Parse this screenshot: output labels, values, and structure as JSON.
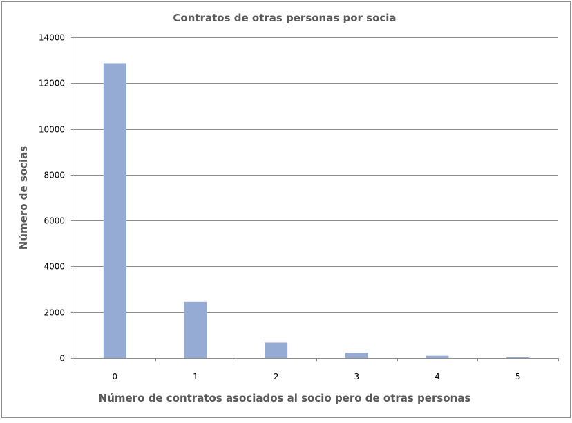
{
  "chart_data": {
    "type": "bar",
    "title": "Contratos de otras personas por socia",
    "xlabel": "Número de contratos asociados al socio pero de otras personas",
    "ylabel": "Número de socias",
    "categories": [
      "0",
      "1",
      "2",
      "3",
      "4",
      "5"
    ],
    "values": [
      12870,
      2450,
      680,
      230,
      100,
      40
    ],
    "ylim": [
      0,
      14000
    ],
    "yticks": [
      "0",
      "2000",
      "4000",
      "6000",
      "8000",
      "10000",
      "12000",
      "14000"
    ],
    "grid": true,
    "legend": "none",
    "colors": {
      "bar": "#95abd4",
      "grid": "#8c8c8c",
      "axis": "#8c8c8c",
      "border": "#8c8c8c"
    }
  }
}
